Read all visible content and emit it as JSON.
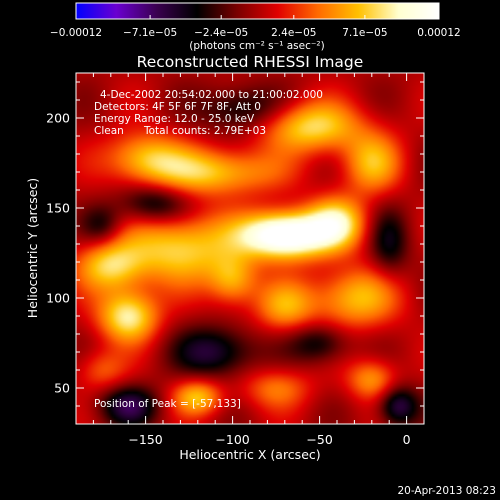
{
  "colorbar": {
    "tick_labels": [
      "−0.00012",
      "−7.1e−05",
      "−2.4e−05",
      "2.4e−05",
      "7.1e−05",
      "0.00012"
    ],
    "tick_values": [
      -0.00012,
      -7.1e-05,
      -2.4e-05,
      2.4e-05,
      7.1e-05,
      0.00012
    ],
    "range": [
      -0.00012,
      0.00012
    ],
    "units": "(photons cm⁻² s⁻¹ asec⁻²)",
    "colors": [
      "#0000ff",
      "#6a00d0",
      "#3a0050",
      "#000000",
      "#7a0000",
      "#e00000",
      "#ff6a00",
      "#ffc000",
      "#ffffd0",
      "#ffffff"
    ]
  },
  "chart_data": {
    "type": "heatmap",
    "title": "Reconstructed RHESSI Image",
    "xlabel": "Heliocentric X (arcsec)",
    "ylabel": "Heliocentric Y (arcsec)",
    "xlim": [
      -190,
      10
    ],
    "ylim": [
      30,
      225
    ],
    "x_ticks": [
      -150,
      -100,
      -50,
      0
    ],
    "y_ticks": [
      50,
      100,
      150,
      200
    ],
    "peak": {
      "x": -57,
      "y": 133
    },
    "value_range": [
      -0.00012,
      0.00012
    ],
    "sources": [
      {
        "x": -70,
        "y": 135,
        "sx": 18,
        "sy": 9,
        "a": 1.25
      },
      {
        "x": -40,
        "y": 142,
        "sx": 12,
        "sy": 10,
        "a": 0.65
      },
      {
        "x": -160,
        "y": 90,
        "sx": 12,
        "sy": 10,
        "a": 0.75
      },
      {
        "x": -170,
        "y": 118,
        "sx": 14,
        "sy": 10,
        "a": 0.6
      },
      {
        "x": -130,
        "y": 128,
        "sx": 22,
        "sy": 14,
        "a": 0.65
      },
      {
        "x": -110,
        "y": 170,
        "sx": 25,
        "sy": 9,
        "a": 0.6
      },
      {
        "x": -150,
        "y": 178,
        "sx": 16,
        "sy": 10,
        "a": 0.55
      },
      {
        "x": -55,
        "y": 195,
        "sx": 20,
        "sy": 10,
        "a": 0.65
      },
      {
        "x": -20,
        "y": 175,
        "sx": 12,
        "sy": 12,
        "a": 0.5
      },
      {
        "x": -100,
        "y": 110,
        "sx": 10,
        "sy": 10,
        "a": 0.5
      },
      {
        "x": -30,
        "y": 100,
        "sx": 18,
        "sy": 12,
        "a": 0.55
      },
      {
        "x": -70,
        "y": 95,
        "sx": 12,
        "sy": 10,
        "a": 0.45
      },
      {
        "x": -120,
        "y": 45,
        "sx": 10,
        "sy": 7,
        "a": 0.55
      },
      {
        "x": -75,
        "y": 50,
        "sx": 14,
        "sy": 8,
        "a": 0.35
      },
      {
        "x": -20,
        "y": 55,
        "sx": 10,
        "sy": 8,
        "a": 0.45
      },
      {
        "x": -175,
        "y": 60,
        "sx": 10,
        "sy": 8,
        "a": 0.3
      },
      {
        "x": -110,
        "y": 70,
        "sx": 16,
        "sy": 10,
        "a": -0.5
      },
      {
        "x": -160,
        "y": 40,
        "sx": 12,
        "sy": 8,
        "a": -0.5
      },
      {
        "x": -50,
        "y": 75,
        "sx": 12,
        "sy": 8,
        "a": -0.4
      },
      {
        "x": -145,
        "y": 152,
        "sx": 14,
        "sy": 8,
        "a": -0.45
      },
      {
        "x": -95,
        "y": 205,
        "sx": 16,
        "sy": 9,
        "a": -0.4
      },
      {
        "x": -5,
        "y": 40,
        "sx": 8,
        "sy": 8,
        "a": -0.55
      },
      {
        "x": -10,
        "y": 130,
        "sx": 8,
        "sy": 14,
        "a": -0.35
      },
      {
        "x": -175,
        "y": 140,
        "sx": 8,
        "sy": 8,
        "a": -0.3
      }
    ]
  },
  "info": {
    "time_range": "4-Dec-2002 20:54:02.000 to 21:00:02.000",
    "detectors": "Detectors: 4F 5F 6F 7F 8F, Att 0",
    "energy": "Energy Range: 12.0 - 25.0 keV",
    "method": "Clean",
    "counts": "Total counts: 2.79E+03",
    "peak_text": "Position of Peak = [-57,133]"
  },
  "footer": {
    "timestamp": "20-Apr-2013 08:23"
  }
}
